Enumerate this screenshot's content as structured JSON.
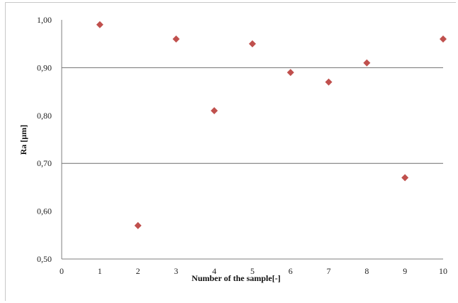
{
  "chart_data": {
    "type": "scatter",
    "title": "",
    "xlabel": "Number of the sample[-]",
    "ylabel": "Ra [µm]",
    "xlim": [
      0,
      10
    ],
    "ylim": [
      0.5,
      1.0
    ],
    "x_ticks": [
      "0",
      "1",
      "2",
      "3",
      "4",
      "5",
      "6",
      "7",
      "8",
      "9",
      "10"
    ],
    "y_ticks": [
      "0,50",
      "0,60",
      "0,70",
      "0,80",
      "0,90",
      "1,00"
    ],
    "grid_y_values": [
      0.7,
      0.9
    ],
    "marker": "diamond",
    "marker_color": "#c0504d",
    "points": [
      {
        "x": 1,
        "y": 0.99
      },
      {
        "x": 2,
        "y": 0.57
      },
      {
        "x": 3,
        "y": 0.96
      },
      {
        "x": 4,
        "y": 0.81
      },
      {
        "x": 5,
        "y": 0.95
      },
      {
        "x": 6,
        "y": 0.89
      },
      {
        "x": 7,
        "y": 0.87
      },
      {
        "x": 8,
        "y": 0.91
      },
      {
        "x": 9,
        "y": 0.67
      },
      {
        "x": 10,
        "y": 0.96
      }
    ]
  }
}
